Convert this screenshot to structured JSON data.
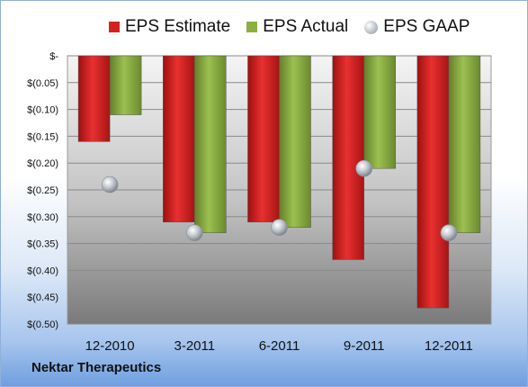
{
  "company_name": "Nektar Therapeutics",
  "chart_data": {
    "type": "bar",
    "categories": [
      "12-2010",
      "3-2011",
      "6-2011",
      "9-2011",
      "12-2011"
    ],
    "series": [
      {
        "name": "EPS Estimate",
        "kind": "bar",
        "color": "#d62020",
        "values": [
          -0.16,
          -0.31,
          -0.31,
          -0.38,
          -0.47
        ]
      },
      {
        "name": "EPS Actual",
        "kind": "bar",
        "color": "#8cb040",
        "values": [
          -0.11,
          -0.33,
          -0.32,
          -0.21,
          -0.33
        ]
      },
      {
        "name": "EPS GAAP",
        "kind": "marker",
        "color": "#b8bec6",
        "values": [
          -0.24,
          -0.33,
          -0.32,
          -0.21,
          -0.33
        ]
      }
    ],
    "y_ticks": [
      {
        "value": 0,
        "label": "$-"
      },
      {
        "value": -0.05,
        "label": "$(0.05)"
      },
      {
        "value": -0.1,
        "label": "$(0.10)"
      },
      {
        "value": -0.15,
        "label": "$(0.15)"
      },
      {
        "value": -0.2,
        "label": "$(0.20)"
      },
      {
        "value": -0.25,
        "label": "$(0.25)"
      },
      {
        "value": -0.3,
        "label": "$(0.30)"
      },
      {
        "value": -0.35,
        "label": "$(0.35)"
      },
      {
        "value": -0.4,
        "label": "$(0.40)"
      },
      {
        "value": -0.45,
        "label": "$(0.45)"
      },
      {
        "value": -0.5,
        "label": "$(0.50)"
      }
    ],
    "ylim": [
      -0.5,
      0
    ],
    "grid": true,
    "legend_position": "top"
  }
}
